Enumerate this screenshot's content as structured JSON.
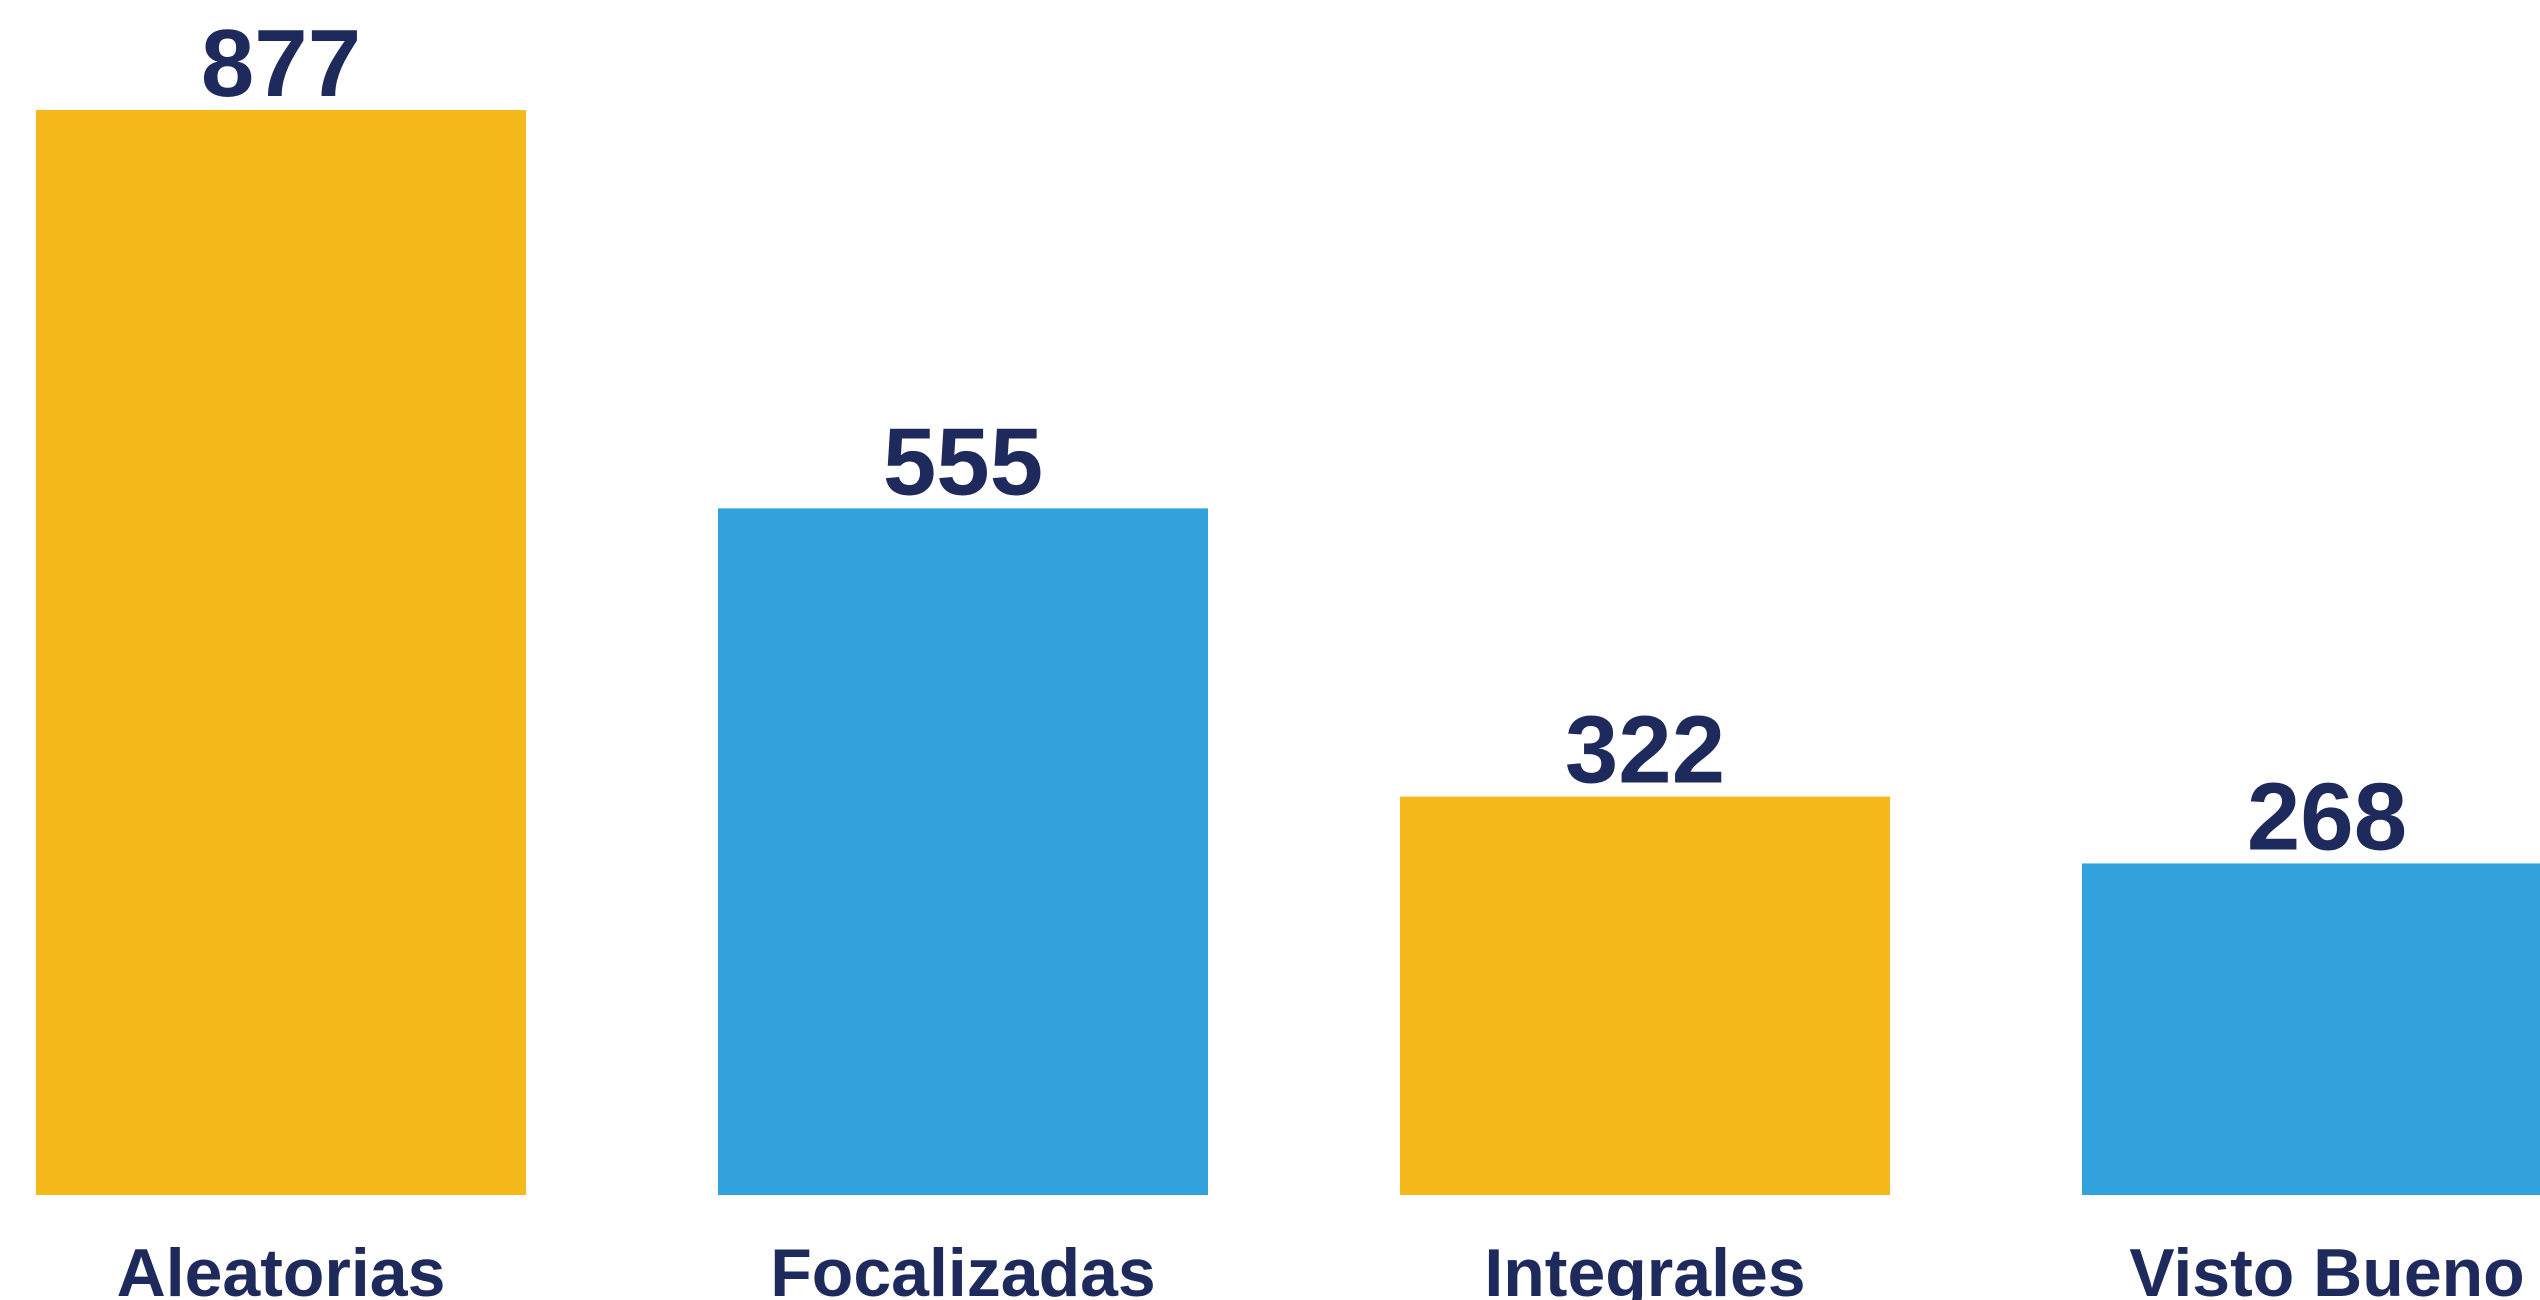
{
  "chart_data": {
    "type": "bar",
    "categories": [
      "Aleatorias",
      "Focalizadas",
      "Integrales",
      "Visto Bueno"
    ],
    "values": [
      877,
      555,
      322,
      268
    ],
    "colors": [
      "#f5b91c",
      "#31a2db",
      "#f5b91c",
      "#31a2db"
    ],
    "label_color": "#1f2a5c"
  }
}
